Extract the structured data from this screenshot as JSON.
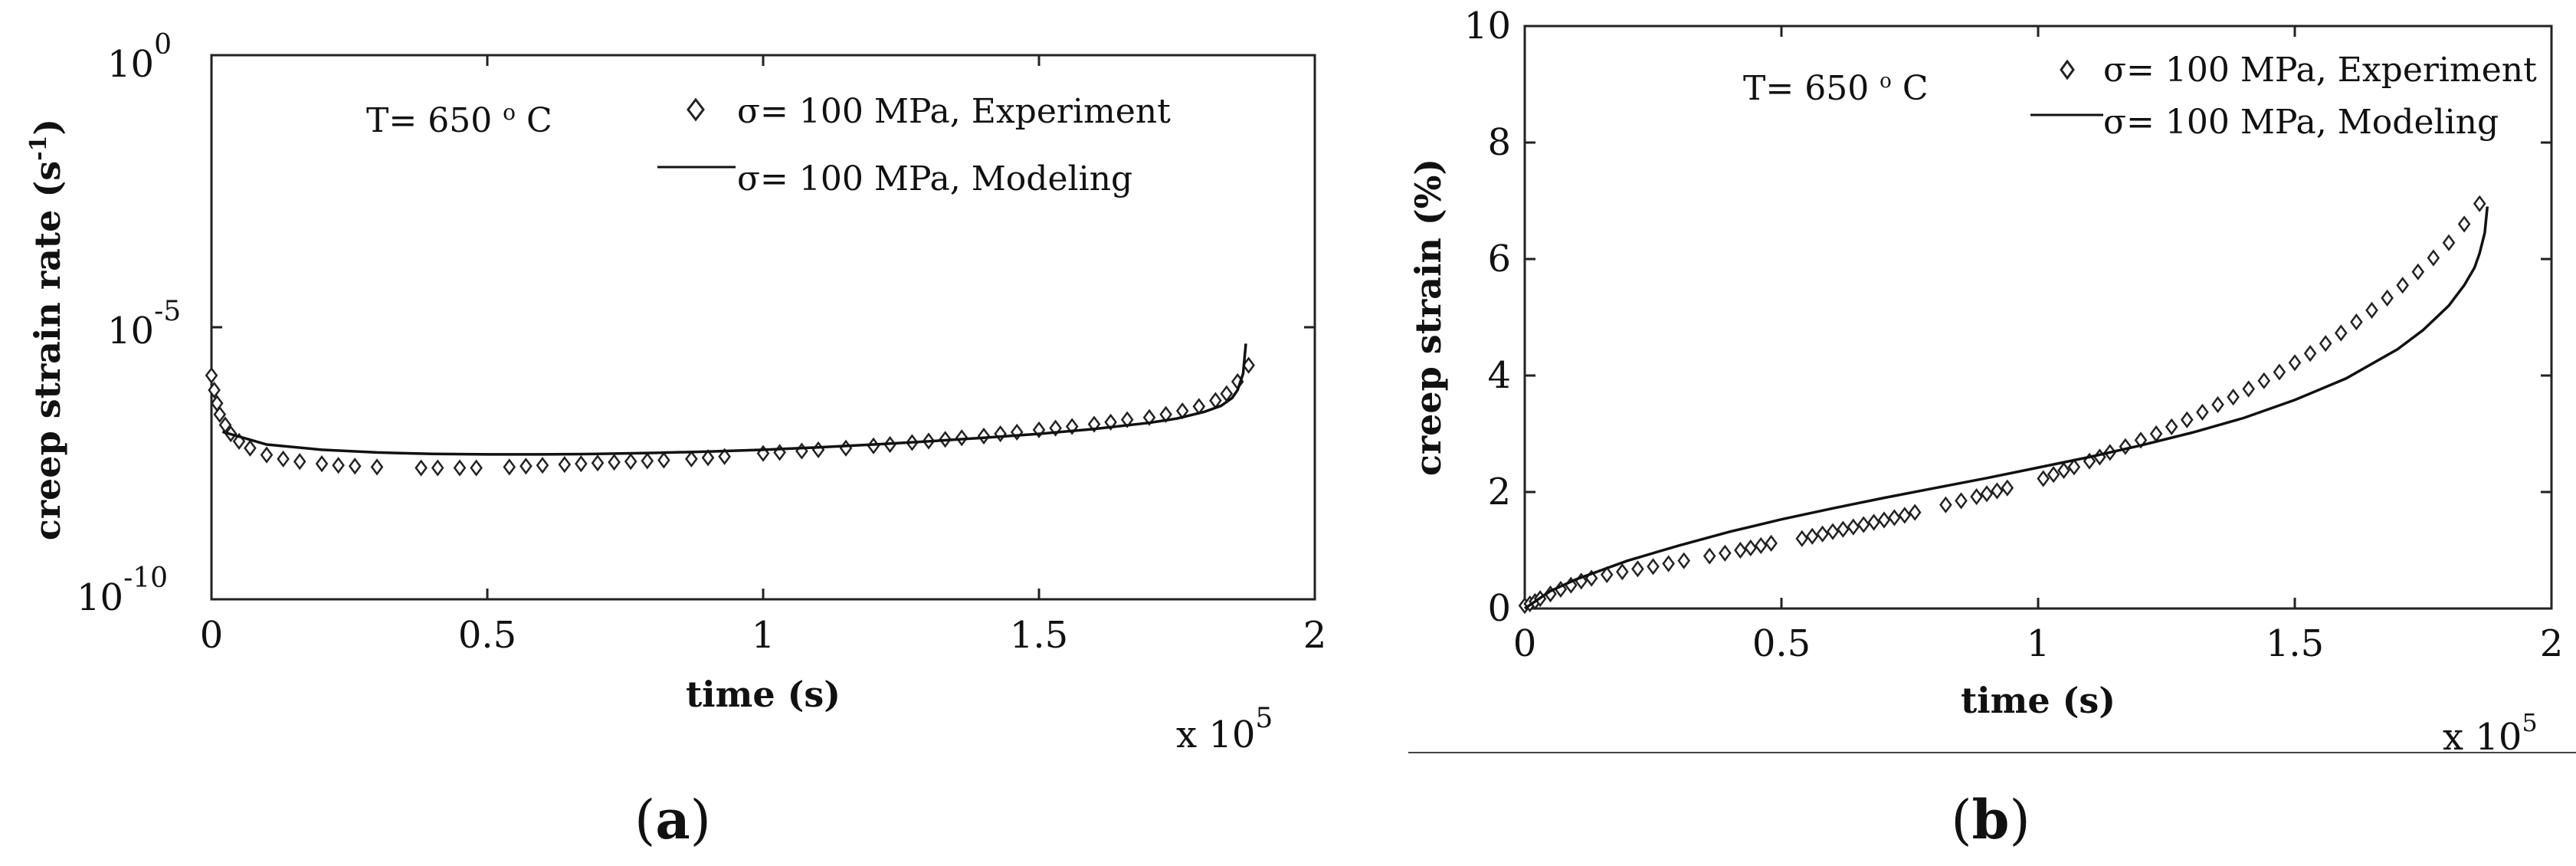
{
  "figure": {
    "captions": [
      "(a)",
      "(b)"
    ],
    "caption_letters": [
      "a",
      "b"
    ]
  },
  "chart_data": [
    {
      "type": "scatter",
      "panel": "a",
      "title": "",
      "annotation": "T= 650 ° C",
      "annotation_parts": {
        "prefix": "T= 650 ",
        "degree": "o",
        "suffix": " C"
      },
      "xlabel": "time (s)",
      "x_multiplier": "x 10",
      "x_multiplier_exp": "5",
      "ylabel": "creep strain rate (s",
      "ylabel_exp": "-1",
      "ylabel_close": ")",
      "y_scale": "log",
      "xlim": [
        0,
        2
      ],
      "ylim": [
        1e-10,
        1
      ],
      "x_ticks": [
        0,
        0.5,
        1,
        1.5,
        2
      ],
      "x_tick_labels": [
        "0",
        "0.5",
        "1",
        "1.5",
        "2"
      ],
      "y_ticks": [
        1e-10,
        1e-05,
        1
      ],
      "y_tick_base": "10",
      "y_tick_exps": [
        "-10",
        "-5",
        "0"
      ],
      "legend": [
        {
          "label": "σ= 100 MPa, Experiment",
          "marker": "diamond"
        },
        {
          "label": "σ= 100 MPa, Modeling",
          "marker": "line"
        }
      ],
      "series": [
        {
          "name": "σ= 100 MPa, Experiment",
          "kind": "markers",
          "x": [
            0.0,
            0.005,
            0.01,
            0.015,
            0.025,
            0.035,
            0.05,
            0.07,
            0.1,
            0.13,
            0.16,
            0.2,
            0.23,
            0.26,
            0.3,
            0.38,
            0.41,
            0.45,
            0.48,
            0.54,
            0.57,
            0.6,
            0.64,
            0.67,
            0.7,
            0.73,
            0.76,
            0.79,
            0.82,
            0.87,
            0.9,
            0.93,
            1.0,
            1.03,
            1.07,
            1.1,
            1.15,
            1.2,
            1.23,
            1.27,
            1.3,
            1.33,
            1.36,
            1.4,
            1.43,
            1.46,
            1.5,
            1.53,
            1.56,
            1.6,
            1.63,
            1.66,
            1.7,
            1.73,
            1.76,
            1.79,
            1.82,
            1.84,
            1.86,
            1.88
          ],
          "y": [
            1.3e-06,
            7e-07,
            4e-07,
            2.5e-07,
            1.6e-07,
            1.1e-07,
            8e-08,
            6e-08,
            4.5e-08,
            3.8e-08,
            3.4e-08,
            3.1e-08,
            2.9e-08,
            2.8e-08,
            2.7e-08,
            2.6e-08,
            2.6e-08,
            2.6e-08,
            2.6e-08,
            2.7e-08,
            2.8e-08,
            2.9e-08,
            3e-08,
            3.1e-08,
            3.2e-08,
            3.3e-08,
            3.4e-08,
            3.5e-08,
            3.6e-08,
            3.8e-08,
            4e-08,
            4.2e-08,
            4.8e-08,
            5e-08,
            5.3e-08,
            5.6e-08,
            6e-08,
            6.6e-08,
            7e-08,
            7.6e-08,
            8.1e-08,
            8.7e-08,
            9.3e-08,
            1e-07,
            1.1e-07,
            1.18e-07,
            1.3e-07,
            1.4e-07,
            1.5e-07,
            1.65e-07,
            1.8e-07,
            2e-07,
            2.2e-07,
            2.5e-07,
            2.9e-07,
            3.5e-07,
            4.5e-07,
            6e-07,
            1e-06,
            2e-06
          ]
        },
        {
          "name": "σ= 100 MPa, Modeling",
          "kind": "line",
          "x": [
            0.02,
            0.1,
            0.2,
            0.3,
            0.4,
            0.5,
            0.6,
            0.7,
            0.8,
            0.9,
            1.0,
            1.1,
            1.2,
            1.3,
            1.4,
            1.5,
            1.6,
            1.7,
            1.75,
            1.8,
            1.83,
            1.85,
            1.86,
            1.87,
            1.875
          ],
          "y": [
            1.2e-07,
            7e-08,
            5.6e-08,
            5e-08,
            4.7e-08,
            4.6e-08,
            4.6e-08,
            4.7e-08,
            4.9e-08,
            5.2e-08,
            5.6e-08,
            6.2e-08,
            7e-08,
            8e-08,
            9.3e-08,
            1.1e-07,
            1.35e-07,
            1.75e-07,
            2.1e-07,
            2.8e-07,
            3.6e-07,
            5e-07,
            7e-07,
            1.4e-06,
            5e-06
          ]
        }
      ]
    },
    {
      "type": "scatter",
      "panel": "b",
      "title": "",
      "annotation": "T= 650 ° C",
      "annotation_parts": {
        "prefix": "T= 650 ",
        "degree": "o",
        "suffix": " C"
      },
      "xlabel": "time (s)",
      "x_multiplier": "x 10",
      "x_multiplier_exp": "5",
      "ylabel": "creep strain (%)",
      "xlim": [
        0,
        2
      ],
      "ylim": [
        0,
        10
      ],
      "x_ticks": [
        0,
        0.5,
        1,
        1.5,
        2
      ],
      "x_tick_labels": [
        "0",
        "0.5",
        "1",
        "1.5",
        "2"
      ],
      "y_ticks": [
        0,
        2,
        4,
        6,
        8,
        10
      ],
      "y_tick_labels": [
        "0",
        "2",
        "4",
        "6",
        "8",
        "10"
      ],
      "legend": [
        {
          "label": "σ= 100 MPa, Experiment",
          "marker": "diamond"
        },
        {
          "label": "σ= 100 MPa, Modeling",
          "marker": "line"
        }
      ],
      "series": [
        {
          "name": "σ= 100 MPa, Experiment",
          "kind": "markers",
          "x": [
            0.0,
            0.01,
            0.02,
            0.03,
            0.05,
            0.07,
            0.09,
            0.11,
            0.13,
            0.16,
            0.19,
            0.22,
            0.25,
            0.28,
            0.31,
            0.36,
            0.39,
            0.42,
            0.44,
            0.46,
            0.48,
            0.54,
            0.56,
            0.58,
            0.6,
            0.62,
            0.64,
            0.66,
            0.68,
            0.7,
            0.72,
            0.74,
            0.76,
            0.82,
            0.85,
            0.88,
            0.9,
            0.92,
            0.94,
            1.01,
            1.03,
            1.05,
            1.07,
            1.1,
            1.12,
            1.14,
            1.17,
            1.2,
            1.23,
            1.26,
            1.29,
            1.32,
            1.35,
            1.38,
            1.41,
            1.44,
            1.47,
            1.5,
            1.53,
            1.56,
            1.59,
            1.62,
            1.65,
            1.68,
            1.71,
            1.74,
            1.77,
            1.8,
            1.83,
            1.86
          ],
          "y": [
            0.05,
            0.08,
            0.12,
            0.17,
            0.25,
            0.33,
            0.4,
            0.47,
            0.52,
            0.58,
            0.63,
            0.68,
            0.72,
            0.77,
            0.82,
            0.9,
            0.95,
            1.0,
            1.04,
            1.08,
            1.12,
            1.2,
            1.24,
            1.28,
            1.32,
            1.36,
            1.4,
            1.44,
            1.48,
            1.52,
            1.56,
            1.6,
            1.65,
            1.78,
            1.85,
            1.92,
            1.97,
            2.02,
            2.07,
            2.23,
            2.3,
            2.37,
            2.43,
            2.53,
            2.6,
            2.68,
            2.78,
            2.89,
            3.0,
            3.12,
            3.24,
            3.37,
            3.5,
            3.63,
            3.77,
            3.91,
            4.06,
            4.22,
            4.38,
            4.55,
            4.73,
            4.92,
            5.12,
            5.33,
            5.55,
            5.78,
            6.02,
            6.28,
            6.6,
            6.95
          ]
        },
        {
          "name": "σ= 100 MPa, Modeling",
          "kind": "line",
          "x": [
            0.0,
            0.05,
            0.1,
            0.2,
            0.3,
            0.4,
            0.5,
            0.6,
            0.7,
            0.8,
            0.9,
            1.0,
            1.1,
            1.2,
            1.3,
            1.4,
            1.5,
            1.6,
            1.7,
            1.75,
            1.8,
            1.83,
            1.85,
            1.86,
            1.87,
            1.875
          ],
          "y": [
            0.0,
            0.3,
            0.5,
            0.82,
            1.08,
            1.32,
            1.53,
            1.72,
            1.9,
            2.07,
            2.24,
            2.42,
            2.6,
            2.8,
            3.02,
            3.27,
            3.58,
            3.95,
            4.45,
            4.78,
            5.2,
            5.55,
            5.85,
            6.1,
            6.45,
            6.9
          ]
        }
      ]
    }
  ]
}
